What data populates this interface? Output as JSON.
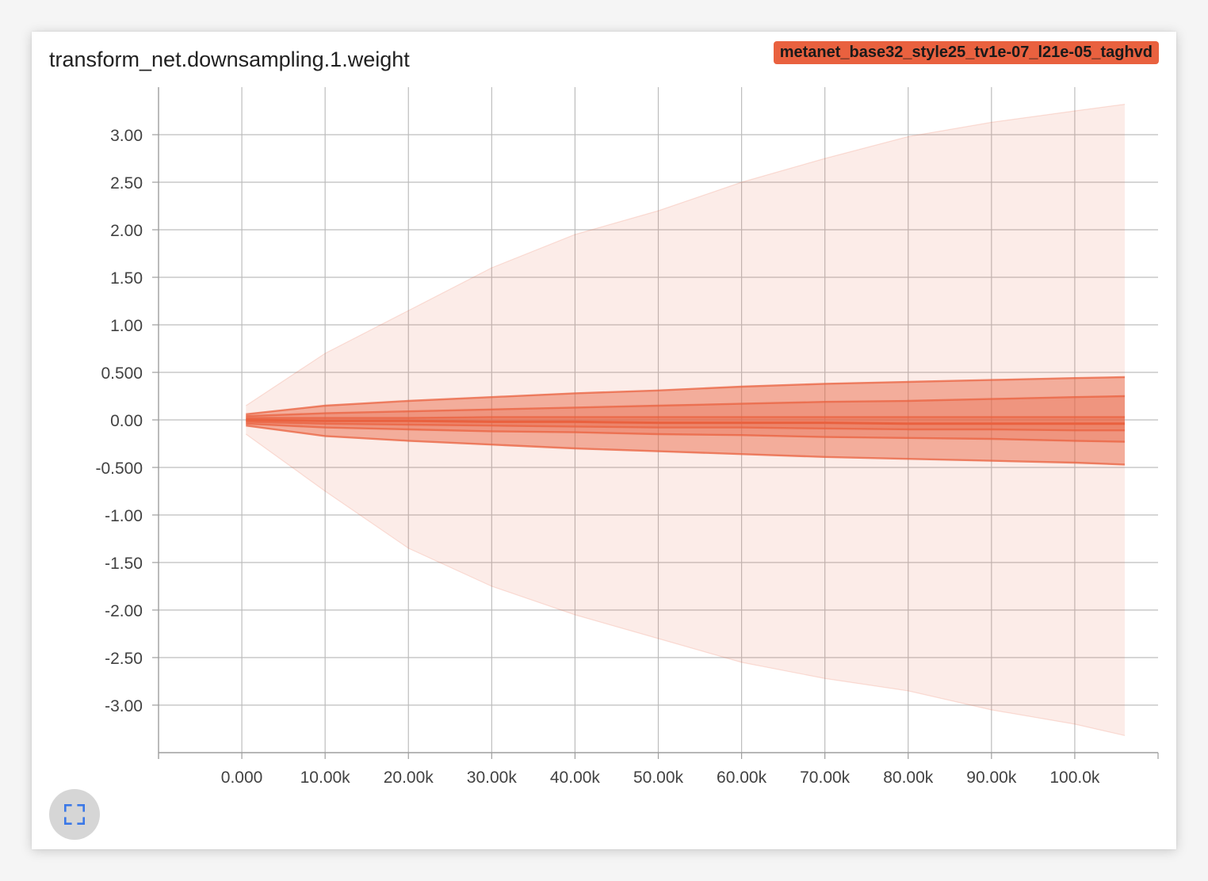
{
  "card": {
    "title": "transform_net.downsampling.1.weight",
    "run_tag": "metanet_base32_style25_tv1e-07_l21e-05_taghvd",
    "run_color": "#e9613f",
    "fullscreen_icon": "fullscreen-icon",
    "icon_color": "#3b78e7"
  },
  "chart_data": {
    "type": "area",
    "title": "transform_net.downsampling.1.weight",
    "xlabel": "",
    "ylabel": "",
    "xlim": [
      -10000,
      110000
    ],
    "ylim": [
      -3.5,
      3.5
    ],
    "grid": true,
    "x_ticks": [
      0,
      10000,
      20000,
      30000,
      40000,
      50000,
      60000,
      70000,
      80000,
      90000,
      100000
    ],
    "x_tick_labels": [
      "0.000",
      "10.00k",
      "20.00k",
      "30.00k",
      "40.00k",
      "50.00k",
      "60.00k",
      "70.00k",
      "80.00k",
      "90.00k",
      "100.0k"
    ],
    "y_ticks": [
      3,
      2.5,
      2,
      1.5,
      1,
      0.5,
      0,
      -0.5,
      -1,
      -1.5,
      -2,
      -2.5,
      -3
    ],
    "y_tick_labels": [
      "3.00",
      "2.50",
      "2.00",
      "1.50",
      "1.00",
      "0.500",
      "0.00",
      "-0.500",
      "-1.00",
      "-1.50",
      "-2.00",
      "-2.50",
      "-3.00"
    ],
    "x": [
      500,
      10000,
      20000,
      30000,
      40000,
      50000,
      60000,
      70000,
      80000,
      90000,
      100000,
      106000
    ],
    "bands": [
      {
        "lower": [
          -0.15,
          -0.75,
          -1.35,
          -1.75,
          -2.05,
          -2.3,
          -2.55,
          -2.72,
          -2.85,
          -3.05,
          -3.2,
          -3.32
        ],
        "upper": [
          0.15,
          0.7,
          1.15,
          1.6,
          1.95,
          2.2,
          2.5,
          2.75,
          2.98,
          3.13,
          3.25,
          3.32
        ],
        "opacity": 0.12
      },
      {
        "lower": [
          -0.06,
          -0.17,
          -0.22,
          -0.26,
          -0.3,
          -0.33,
          -0.36,
          -0.39,
          -0.41,
          -0.43,
          -0.45,
          -0.47
        ],
        "upper": [
          0.06,
          0.15,
          0.2,
          0.24,
          0.28,
          0.31,
          0.35,
          0.38,
          0.4,
          0.42,
          0.44,
          0.45
        ],
        "opacity": 0.45
      },
      {
        "lower": [
          -0.04,
          -0.08,
          -0.1,
          -0.12,
          -0.13,
          -0.15,
          -0.16,
          -0.18,
          -0.19,
          -0.2,
          -0.22,
          -0.23
        ],
        "upper": [
          0.04,
          0.07,
          0.09,
          0.11,
          0.13,
          0.15,
          0.17,
          0.19,
          0.2,
          0.22,
          0.24,
          0.25
        ],
        "opacity": 0.3
      },
      {
        "lower": [
          -0.02,
          -0.04,
          -0.05,
          -0.06,
          -0.07,
          -0.08,
          -0.08,
          -0.09,
          -0.1,
          -0.1,
          -0.11,
          -0.11
        ],
        "upper": [
          0.02,
          0.02,
          0.02,
          0.03,
          0.03,
          0.03,
          0.03,
          0.03,
          0.03,
          0.03,
          0.03,
          0.03
        ],
        "opacity": 0.3
      }
    ],
    "median": [
      0.0,
      -0.01,
      -0.01,
      -0.02,
      -0.02,
      -0.03,
      -0.03,
      -0.03,
      -0.04,
      -0.04,
      -0.04,
      -0.04
    ]
  }
}
